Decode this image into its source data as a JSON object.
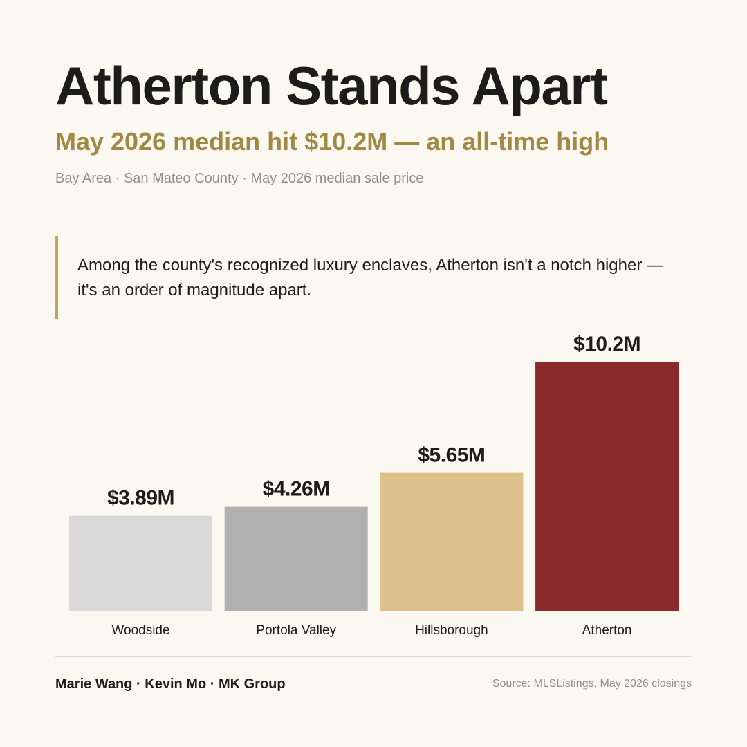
{
  "header": {
    "title": "Atherton Stands Apart",
    "subtitle": "May 2026 median hit $10.2M — an all-time high",
    "meta": "Bay Area · San Mateo County · May 2026 median sale price"
  },
  "callout": {
    "text": "Among the county's recognized luxury enclaves, Atherton isn't a notch higher — it's an order of magnitude apart."
  },
  "footer": {
    "credits": "Marie Wang · Kevin Mo · MK Group",
    "source": "Source: MLSListings, May 2026 closings"
  },
  "colors": {
    "background": "#fbf8f1",
    "title": "#1c1c1a",
    "accent": "#a08a43",
    "callout_bar": "#c3a464",
    "muted_text": "#8f8e88"
  },
  "chart_data": {
    "type": "bar",
    "title": "",
    "xlabel": "",
    "ylabel": "",
    "ylim": [
      0,
      10.2
    ],
    "grid": false,
    "categories": [
      "Woodside",
      "Portola Valley",
      "Hillsborough",
      "Atherton"
    ],
    "values": [
      3.89,
      4.26,
      5.65,
      10.2
    ],
    "value_labels": [
      "$3.89M",
      "$4.26M",
      "$5.65M",
      "$10.2M"
    ],
    "unit": "$M",
    "bar_colors": [
      "#d9d9d9",
      "#b0b0b0",
      "#dcc18c",
      "#8b2a2d"
    ]
  }
}
